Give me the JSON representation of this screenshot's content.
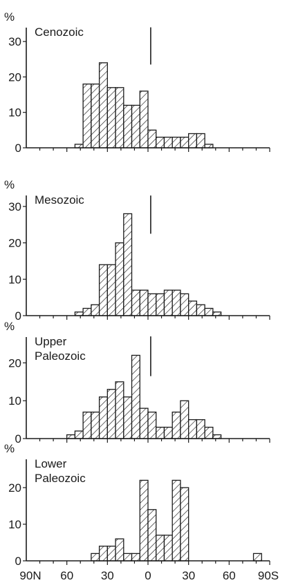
{
  "chart_data": [
    {
      "type": "bar",
      "title": "Cenozoic",
      "ylabel": "%",
      "yticks": [
        0,
        10,
        20,
        30
      ],
      "ylim": [
        0,
        33
      ],
      "xlim": [
        -90,
        90
      ],
      "bin_width": 6,
      "marker_x": 2,
      "marker_top": 34,
      "bars": [
        {
          "x0": -54,
          "x1": -48,
          "value": 1
        },
        {
          "x0": -48,
          "x1": -42,
          "value": 18
        },
        {
          "x0": -42,
          "x1": -36,
          "value": 18
        },
        {
          "x0": -36,
          "x1": -30,
          "value": 24
        },
        {
          "x0": -30,
          "x1": -24,
          "value": 17
        },
        {
          "x0": -24,
          "x1": -18,
          "value": 17
        },
        {
          "x0": -18,
          "x1": -12,
          "value": 12
        },
        {
          "x0": -12,
          "x1": -6,
          "value": 12
        },
        {
          "x0": -6,
          "x1": 0,
          "value": 16
        },
        {
          "x0": 0,
          "x1": 6,
          "value": 5
        },
        {
          "x0": 6,
          "x1": 12,
          "value": 3
        },
        {
          "x0": 12,
          "x1": 18,
          "value": 3
        },
        {
          "x0": 18,
          "x1": 24,
          "value": 3
        },
        {
          "x0": 24,
          "x1": 30,
          "value": 3
        },
        {
          "x0": 30,
          "x1": 36,
          "value": 4
        },
        {
          "x0": 36,
          "x1": 42,
          "value": 4
        },
        {
          "x0": 42,
          "x1": 48,
          "value": 1
        }
      ]
    },
    {
      "type": "bar",
      "title": "Mesozoic",
      "ylabel": "%",
      "yticks": [
        0,
        10,
        20,
        30
      ],
      "ylim": [
        0,
        33
      ],
      "xlim": [
        -90,
        90
      ],
      "bin_width": 6,
      "marker_x": 2,
      "marker_top": 33,
      "bars": [
        {
          "x0": -54,
          "x1": -48,
          "value": 1
        },
        {
          "x0": -48,
          "x1": -42,
          "value": 2
        },
        {
          "x0": -42,
          "x1": -36,
          "value": 3
        },
        {
          "x0": -36,
          "x1": -30,
          "value": 14
        },
        {
          "x0": -30,
          "x1": -24,
          "value": 14
        },
        {
          "x0": -24,
          "x1": -18,
          "value": 20
        },
        {
          "x0": -18,
          "x1": -12,
          "value": 28
        },
        {
          "x0": -12,
          "x1": -6,
          "value": 7
        },
        {
          "x0": -6,
          "x1": 0,
          "value": 7
        },
        {
          "x0": 0,
          "x1": 6,
          "value": 6
        },
        {
          "x0": 6,
          "x1": 12,
          "value": 6
        },
        {
          "x0": 12,
          "x1": 18,
          "value": 7
        },
        {
          "x0": 18,
          "x1": 24,
          "value": 7
        },
        {
          "x0": 24,
          "x1": 30,
          "value": 6
        },
        {
          "x0": 30,
          "x1": 36,
          "value": 4
        },
        {
          "x0": 36,
          "x1": 42,
          "value": 3
        },
        {
          "x0": 42,
          "x1": 48,
          "value": 2
        },
        {
          "x0": 48,
          "x1": 54,
          "value": 1
        }
      ]
    },
    {
      "type": "bar",
      "title": "Upper Paleozoic",
      "ylabel": "%",
      "yticks": [
        0,
        10,
        20
      ],
      "ylim": [
        0,
        27
      ],
      "xlim": [
        -90,
        90
      ],
      "bin_width": 6,
      "marker_x": 2,
      "marker_top": 27,
      "bars": [
        {
          "x0": -60,
          "x1": -54,
          "value": 1
        },
        {
          "x0": -54,
          "x1": -48,
          "value": 2
        },
        {
          "x0": -48,
          "x1": -42,
          "value": 7
        },
        {
          "x0": -42,
          "x1": -36,
          "value": 7
        },
        {
          "x0": -36,
          "x1": -30,
          "value": 11
        },
        {
          "x0": -30,
          "x1": -24,
          "value": 13
        },
        {
          "x0": -24,
          "x1": -18,
          "value": 15
        },
        {
          "x0": -18,
          "x1": -12,
          "value": 11
        },
        {
          "x0": -12,
          "x1": -6,
          "value": 22
        },
        {
          "x0": -6,
          "x1": 0,
          "value": 8
        },
        {
          "x0": 0,
          "x1": 6,
          "value": 7
        },
        {
          "x0": 6,
          "x1": 12,
          "value": 3
        },
        {
          "x0": 12,
          "x1": 18,
          "value": 3
        },
        {
          "x0": 18,
          "x1": 24,
          "value": 7
        },
        {
          "x0": 24,
          "x1": 30,
          "value": 10
        },
        {
          "x0": 30,
          "x1": 36,
          "value": 5
        },
        {
          "x0": 36,
          "x1": 42,
          "value": 5
        },
        {
          "x0": 42,
          "x1": 48,
          "value": 3
        },
        {
          "x0": 48,
          "x1": 54,
          "value": 1
        }
      ]
    },
    {
      "type": "bar",
      "title": "Lower Paleozoic",
      "ylabel": "%",
      "yticks": [
        0,
        10,
        20
      ],
      "ylim": [
        0,
        27
      ],
      "xlim": [
        -90,
        90
      ],
      "bin_width": 6,
      "bars": [
        {
          "x0": -42,
          "x1": -36,
          "value": 2
        },
        {
          "x0": -36,
          "x1": -30,
          "value": 4
        },
        {
          "x0": -30,
          "x1": -24,
          "value": 4
        },
        {
          "x0": -24,
          "x1": -18,
          "value": 6
        },
        {
          "x0": -18,
          "x1": -12,
          "value": 2
        },
        {
          "x0": -12,
          "x1": -6,
          "value": 2
        },
        {
          "x0": -6,
          "x1": 0,
          "value": 22
        },
        {
          "x0": 0,
          "x1": 6,
          "value": 14
        },
        {
          "x0": 6,
          "x1": 12,
          "value": 7
        },
        {
          "x0": 12,
          "x1": 18,
          "value": 7
        },
        {
          "x0": 18,
          "x1": 24,
          "value": 22
        },
        {
          "x0": 24,
          "x1": 30,
          "value": 20
        },
        {
          "x0": 78,
          "x1": 84,
          "value": 2
        }
      ]
    }
  ],
  "x_axis": {
    "ticks": [
      -90,
      -60,
      -30,
      0,
      30,
      60,
      90
    ],
    "tick_labels": [
      "90N",
      "60",
      "30",
      "0",
      "30",
      "60",
      "90S"
    ],
    "minor_step": 10
  }
}
